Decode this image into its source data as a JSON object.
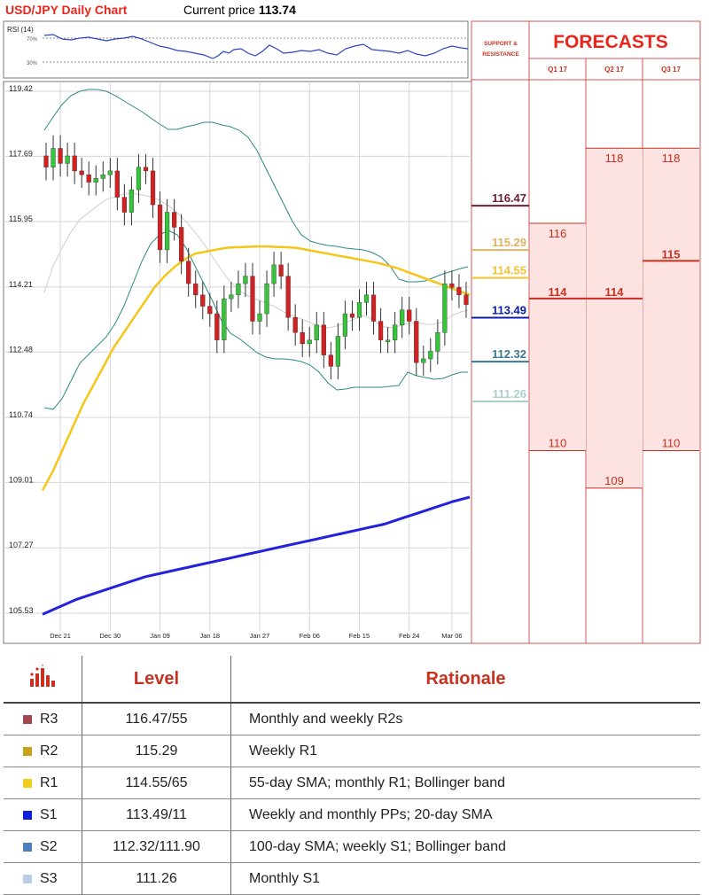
{
  "header": {
    "title": "USD/JPY Daily Chart",
    "price_label": "Current price",
    "price_value": "113.74"
  },
  "forecast_panel": {
    "support_label_1": "SUPPORT &",
    "support_label_2": "RESISTANCE",
    "title": "FORECASTS",
    "quarters": [
      "Q1 17",
      "Q2 17",
      "Q3 17"
    ]
  },
  "rsi": {
    "label": "RSI (14)",
    "upper": "70%",
    "lower": "30%"
  },
  "chart_data": {
    "type": "candlestick",
    "ylim": [
      104.7,
      120.3
    ],
    "ytick_labels": [
      "119.42",
      "117.69",
      "115.95",
      "114.21",
      "112.48",
      "110.74",
      "109.01",
      "107.27",
      "105.53"
    ],
    "ytick_values": [
      119.42,
      117.69,
      115.95,
      114.21,
      112.48,
      110.74,
      109.01,
      107.27,
      105.53
    ],
    "xtick_labels": [
      "Dec 21",
      "Dec 30",
      "Jan 09",
      "Jan 18",
      "Jan 27",
      "Feb 06",
      "Feb 15",
      "Feb 24",
      "Mar 06"
    ],
    "xtick_index": [
      2,
      9,
      16,
      23,
      30,
      37,
      44,
      51,
      57
    ],
    "n": 60,
    "closes": [
      117.4,
      117.9,
      117.5,
      117.7,
      117.3,
      117.2,
      117.0,
      117.1,
      117.2,
      117.3,
      116.6,
      116.2,
      116.8,
      117.4,
      117.3,
      116.4,
      115.2,
      116.2,
      115.8,
      114.9,
      114.3,
      114.0,
      113.7,
      113.5,
      112.8,
      113.9,
      114.0,
      114.3,
      114.5,
      113.3,
      113.5,
      114.3,
      114.8,
      114.5,
      113.4,
      113.0,
      112.7,
      112.8,
      113.2,
      112.4,
      112.1,
      112.9,
      113.5,
      113.4,
      113.8,
      114.0,
      113.3,
      112.8,
      112.8,
      113.2,
      113.6,
      113.3,
      112.2,
      112.3,
      112.5,
      113.0,
      114.3,
      114.2,
      114.0,
      113.74
    ],
    "sma20": [
      null,
      null,
      null,
      null,
      null,
      null,
      null,
      null,
      null,
      null,
      null,
      null,
      null,
      null,
      null,
      null,
      null,
      null,
      null,
      null,
      null,
      null,
      null,
      null,
      null,
      null,
      null,
      null,
      null,
      null,
      null,
      null,
      null,
      null,
      null,
      null,
      null,
      null,
      null,
      null,
      null,
      null,
      null,
      null,
      null,
      null,
      null,
      null,
      null,
      null,
      null,
      null,
      null,
      null,
      null,
      null,
      null,
      null,
      null,
      null
    ],
    "sma55": [
      108.8,
      109.3,
      109.9,
      110.5,
      111.1,
      111.6,
      112.1,
      112.6,
      113.0,
      113.4,
      113.8,
      114.2,
      114.5,
      114.75,
      114.95,
      115.1,
      115.15,
      115.2,
      115.25,
      115.27,
      115.28,
      115.29,
      115.29,
      115.28,
      115.27,
      115.25,
      115.2,
      115.15,
      115.1,
      115.05,
      115.0,
      114.95,
      114.9,
      114.85,
      114.78,
      114.7,
      114.6,
      114.5,
      114.4,
      114.3,
      114.2,
      114.1,
      114.0
    ],
    "sma100": [
      105.5,
      105.7,
      105.9,
      106.05,
      106.2,
      106.35,
      106.5,
      106.6,
      106.7,
      106.8,
      106.9,
      107.0,
      107.1,
      107.2,
      107.3,
      107.4,
      107.5,
      107.6,
      107.7,
      107.8,
      107.9,
      108.05,
      108.2,
      108.35,
      108.5,
      108.62
    ],
    "levels": [
      {
        "name": "R3",
        "value": 116.47,
        "label": "116.47",
        "color": "#6e1f34"
      },
      {
        "name": "R2",
        "value": 115.29,
        "label": "115.29",
        "color": "#e0b262"
      },
      {
        "name": "R1",
        "value": 114.55,
        "label": "114.55",
        "color": "#f1c232"
      },
      {
        "name": "S1",
        "value": 113.49,
        "label": "113.49",
        "color": "#0d1fa8"
      },
      {
        "name": "S2",
        "value": 112.32,
        "label": "112.32",
        "color": "#3a7891"
      },
      {
        "name": "S3",
        "value": 111.26,
        "label": "111.26",
        "color": "#a9cfc7"
      }
    ],
    "forecasts": [
      {
        "quarter": "Q1 17",
        "high": "116",
        "low": "110",
        "high_value": 116,
        "low_value": 110,
        "bold": "114",
        "bold_value": 114
      },
      {
        "quarter": "Q2 17",
        "high": "118",
        "low": "109",
        "high_value": 118,
        "low_value": 109,
        "bold": "114",
        "bold_value": 114
      },
      {
        "quarter": "Q3 17",
        "high": "118",
        "low": "110",
        "high_value": 118,
        "low_value": 110,
        "bold": "115",
        "bold_value": 115
      }
    ]
  },
  "table": {
    "level_header": "Level",
    "rationale_header": "Rationale",
    "rows": [
      {
        "name": "R3",
        "level": "116.47/55",
        "rationale": "Monthly and weekly R2s",
        "color": "#a0484e"
      },
      {
        "name": "R2",
        "level": "115.29",
        "rationale": "Weekly R1",
        "color": "#c9a21b"
      },
      {
        "name": "R1",
        "level": "114.55/65",
        "rationale": "55-day SMA; monthly R1; Bollinger band",
        "color": "#f4cc1a"
      },
      {
        "name": "S1",
        "level": "113.49/11",
        "rationale": "Weekly and monthly PPs; 20-day SMA",
        "color": "#0f1fd8"
      },
      {
        "name": "S2",
        "level": "112.32/111.90",
        "rationale": "100-day SMA; weekly S1; Bollinger band",
        "color": "#4a7fb9"
      },
      {
        "name": "S3",
        "level": "111.26",
        "rationale": "Monthly S1",
        "color": "#b9cde4"
      }
    ]
  }
}
